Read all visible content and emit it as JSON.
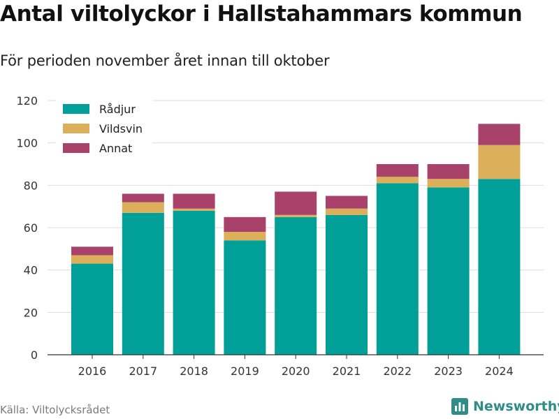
{
  "title": "Antal viltolyckor i Hallstahammars kommun",
  "subtitle": "För perioden november året innan till oktober",
  "source": "Källa: Viltolycksrådet",
  "brand": {
    "name": "Newsworthy",
    "icon": "bar-chart-logo-icon",
    "color": "#2f8c87"
  },
  "chart_data": {
    "type": "bar",
    "stacked": true,
    "categories": [
      "2016",
      "2017",
      "2018",
      "2019",
      "2020",
      "2021",
      "2022",
      "2023",
      "2024"
    ],
    "series": [
      {
        "name": "Rådjur",
        "color": "#00a099",
        "values": [
          43,
          67,
          68,
          54,
          65,
          66,
          81,
          79,
          83
        ]
      },
      {
        "name": "Vildsvin",
        "color": "#dcaf5a",
        "values": [
          4,
          5,
          1,
          4,
          1,
          3,
          3,
          4,
          16
        ]
      },
      {
        "name": "Annat",
        "color": "#a8426a",
        "values": [
          4,
          4,
          7,
          7,
          11,
          6,
          6,
          7,
          10
        ]
      }
    ],
    "ylim": [
      0,
      120
    ],
    "yticks": [
      0,
      20,
      40,
      60,
      80,
      100,
      120
    ],
    "grid": true,
    "legend_position": "top-left"
  }
}
